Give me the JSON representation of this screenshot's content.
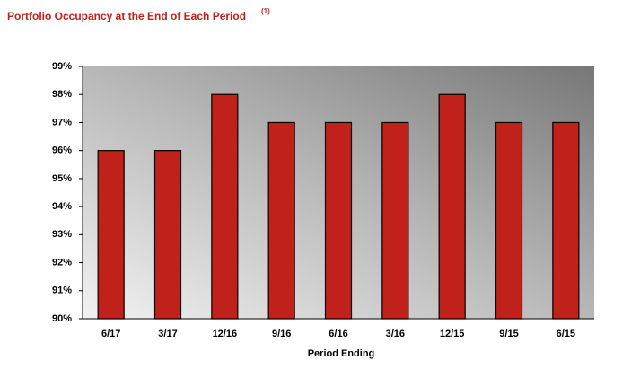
{
  "chart_data": {
    "type": "bar",
    "title": "Portfolio Occupancy at the End of Each Period",
    "title_note": "(1)",
    "x_label": "Period Ending",
    "categories": [
      "6/17",
      "3/17",
      "12/16",
      "9/16",
      "6/16",
      "3/16",
      "12/15",
      "9/15",
      "6/15"
    ],
    "values": [
      96,
      96,
      98,
      97,
      97,
      97,
      98,
      97,
      97
    ],
    "color": "#c0211a",
    "ylim": [
      90,
      99
    ],
    "yticks": [
      {
        "value": 90,
        "label": "90%"
      },
      {
        "value": 91,
        "label": "91%"
      },
      {
        "value": 92,
        "label": "92%"
      },
      {
        "value": 93,
        "label": "93%"
      },
      {
        "value": 94,
        "label": "94%"
      },
      {
        "value": 95,
        "label": "95%"
      },
      {
        "value": 96,
        "label": "96%"
      },
      {
        "value": 97,
        "label": "97%"
      },
      {
        "value": 98,
        "label": "98%"
      },
      {
        "value": 99,
        "label": "99%"
      }
    ]
  }
}
